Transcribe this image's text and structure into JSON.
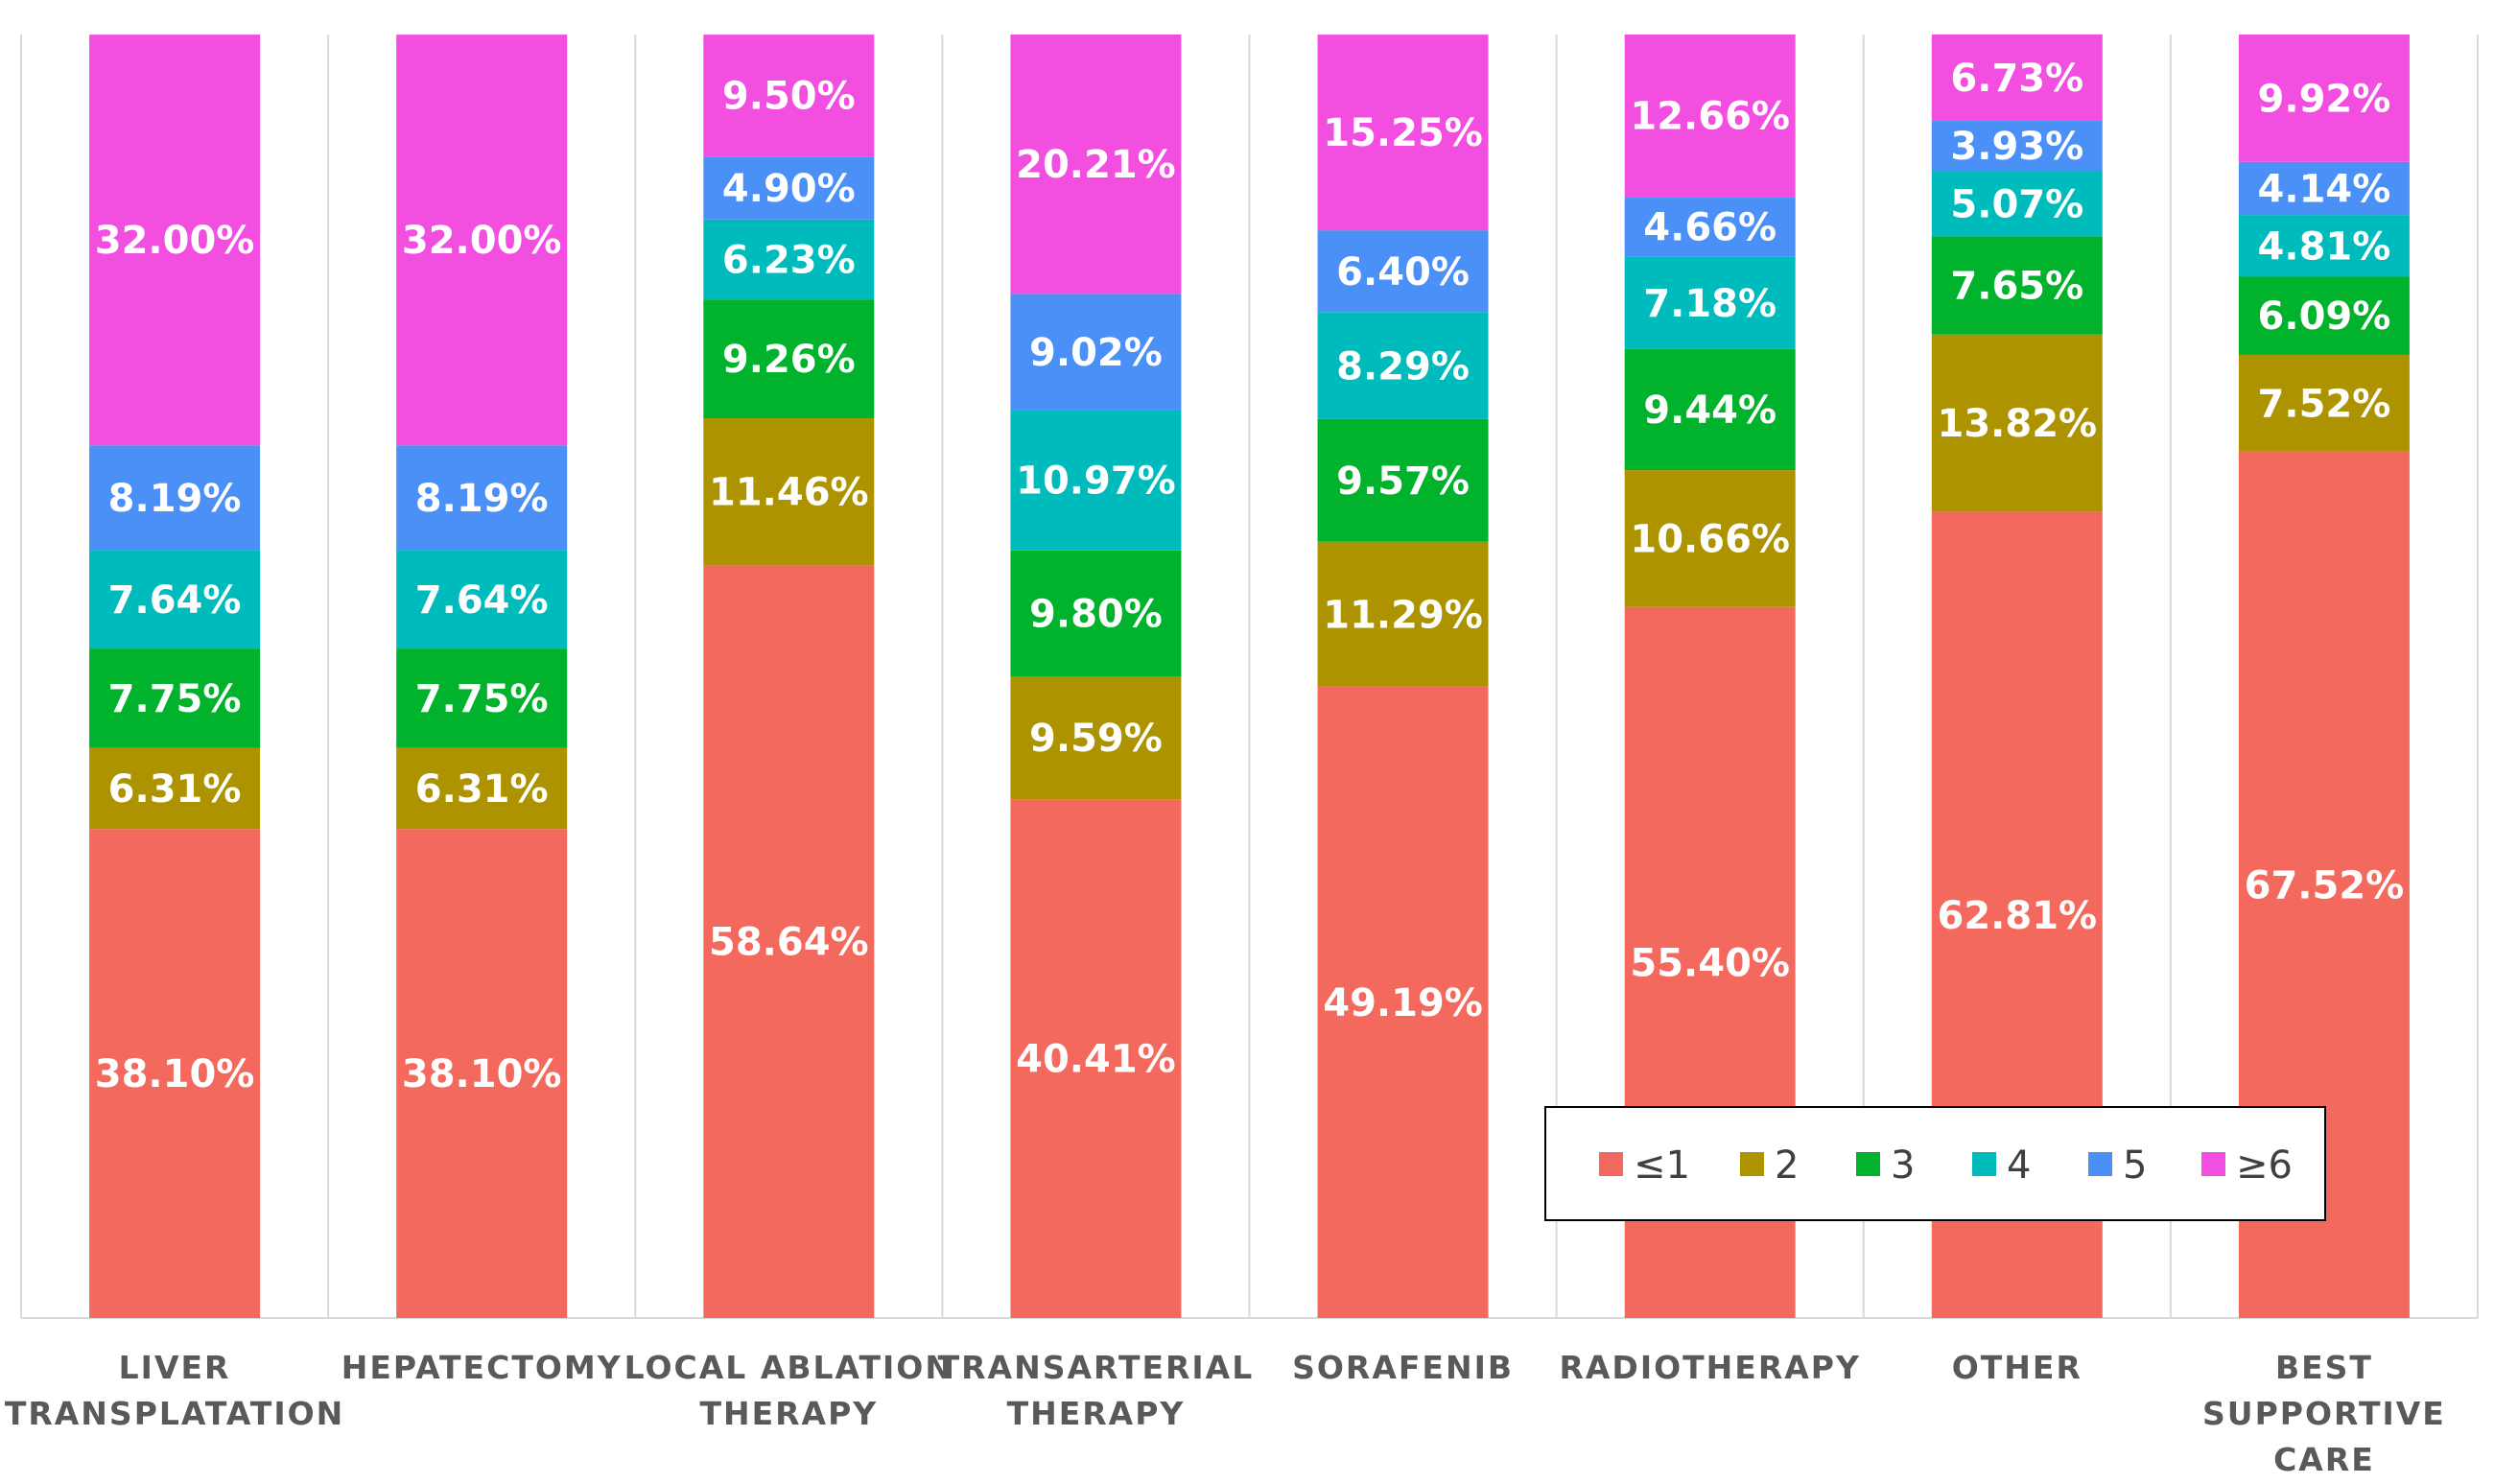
{
  "chart_data": {
    "type": "bar",
    "stacked": true,
    "percent_stacked": true,
    "title": "",
    "xlabel": "",
    "ylabel": "",
    "ylim": [
      0,
      100
    ],
    "grid": "vertical separators",
    "legend_position": "bottom-right inside",
    "categories": [
      [
        "LIVER",
        "TRANSPLATATION"
      ],
      [
        "HEPATECTOMY"
      ],
      [
        "LOCAL ABLATION",
        "THERAPY"
      ],
      [
        "TRANSARTERIAL",
        "THERAPY"
      ],
      [
        "SORAFENIB"
      ],
      [
        "RADIOTHERAPY"
      ],
      [
        "OTHER"
      ],
      [
        "BEST",
        "SUPPORTIVE",
        "CARE"
      ]
    ],
    "series": [
      {
        "name": "≤1",
        "color": "#F4695E",
        "values": [
          38.1,
          38.1,
          58.64,
          40.41,
          49.19,
          55.4,
          62.81,
          67.52
        ],
        "labels": [
          "38.10%",
          "38.10%",
          "58.64%",
          "40.41%",
          "49.19%",
          "55.40%",
          "62.81%",
          "67.52%"
        ]
      },
      {
        "name": "2",
        "color": "#AD9300",
        "values": [
          6.31,
          6.31,
          11.46,
          9.59,
          11.29,
          10.66,
          13.82,
          7.52
        ],
        "labels": [
          "6.31%",
          "6.31%",
          "11.46%",
          "9.59%",
          "11.29%",
          "10.66%",
          "13.82%",
          "7.52%"
        ]
      },
      {
        "name": "3",
        "color": "#00B22C",
        "values": [
          7.75,
          7.75,
          9.26,
          9.8,
          9.57,
          9.44,
          7.65,
          6.09
        ],
        "labels": [
          "7.75%",
          "7.75%",
          "9.26%",
          "9.80%",
          "9.57%",
          "9.44%",
          "7.65%",
          "6.09%"
        ]
      },
      {
        "name": "4",
        "color": "#00BBBB",
        "values": [
          7.64,
          7.64,
          6.23,
          10.97,
          8.29,
          7.18,
          5.07,
          4.81
        ],
        "labels": [
          "7.64%",
          "7.64%",
          "6.23%",
          "10.97%",
          "8.29%",
          "7.18%",
          "5.07%",
          "4.81%"
        ]
      },
      {
        "name": "5",
        "color": "#4A90F7",
        "values": [
          8.19,
          8.19,
          4.9,
          9.02,
          6.4,
          4.66,
          3.93,
          4.14
        ],
        "labels": [
          "8.19%",
          "8.19%",
          "4.90%",
          "9.02%",
          "6.40%",
          "4.66%",
          "3.93%",
          "4.14%"
        ]
      },
      {
        "name": "≥6",
        "color": "#F24FE0",
        "values": [
          32.0,
          32.0,
          9.5,
          20.21,
          15.25,
          12.66,
          6.73,
          9.92
        ],
        "labels": [
          "32.00%",
          "32.00%",
          "9.50%",
          "20.21%",
          "15.25%",
          "12.66%",
          "6.73%",
          "9.92%"
        ]
      }
    ]
  }
}
